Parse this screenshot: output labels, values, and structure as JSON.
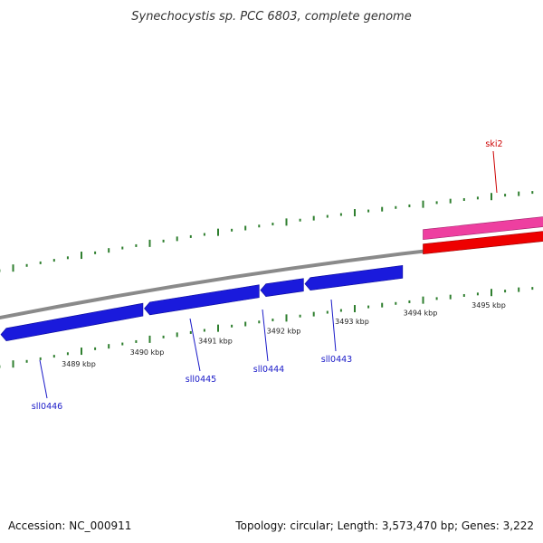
{
  "title": "Synechocystis sp. PCC 6803, complete genome",
  "footer": {
    "accession": "Accession: NC_000911",
    "summary": "Topology: circular; Length: 3,573,470 bp; Genes: 3,222"
  },
  "colors": {
    "background": "#ffffff",
    "backbone": "#8a8a8a",
    "minus_strand_gene": "#1a1adc",
    "plus_strand_gene_top": "#ee3fa0",
    "plus_strand_gene": "#ee0000",
    "tick": "#2f7f2f",
    "minus_label": "#1a1ac8",
    "plus_label": "#cc0000"
  },
  "ticks": {
    "labels": [
      {
        "text": "3489 kbp",
        "kbp": 3489
      },
      {
        "text": "3490 kbp",
        "kbp": 3490
      },
      {
        "text": "3491 kbp",
        "kbp": 3491
      },
      {
        "text": "3492 kbp",
        "kbp": 3492
      },
      {
        "text": "3493 kbp",
        "kbp": 3493
      },
      {
        "text": "3494 kbp",
        "kbp": 3494
      },
      {
        "text": "3495 kbp",
        "kbp": 3495
      }
    ]
  },
  "features": [
    {
      "name": "sll0446",
      "strand": "minus",
      "start_kbp": 3487.9,
      "end_kbp": 3489.9,
      "label": "sll0446"
    },
    {
      "name": "sll0445",
      "strand": "minus",
      "start_kbp": 3490.0,
      "end_kbp": 3491.6,
      "label": "sll0445"
    },
    {
      "name": "sll0444",
      "strand": "minus",
      "start_kbp": 3491.7,
      "end_kbp": 3492.25,
      "label": "sll0444"
    },
    {
      "name": "sll0443",
      "strand": "minus",
      "start_kbp": 3492.35,
      "end_kbp": 3493.7,
      "label": "sll0443"
    },
    {
      "name": "ski2",
      "strand": "plus",
      "start_kbp": 3494.0,
      "end_kbp": 3495.85,
      "label": "ski2"
    }
  ]
}
